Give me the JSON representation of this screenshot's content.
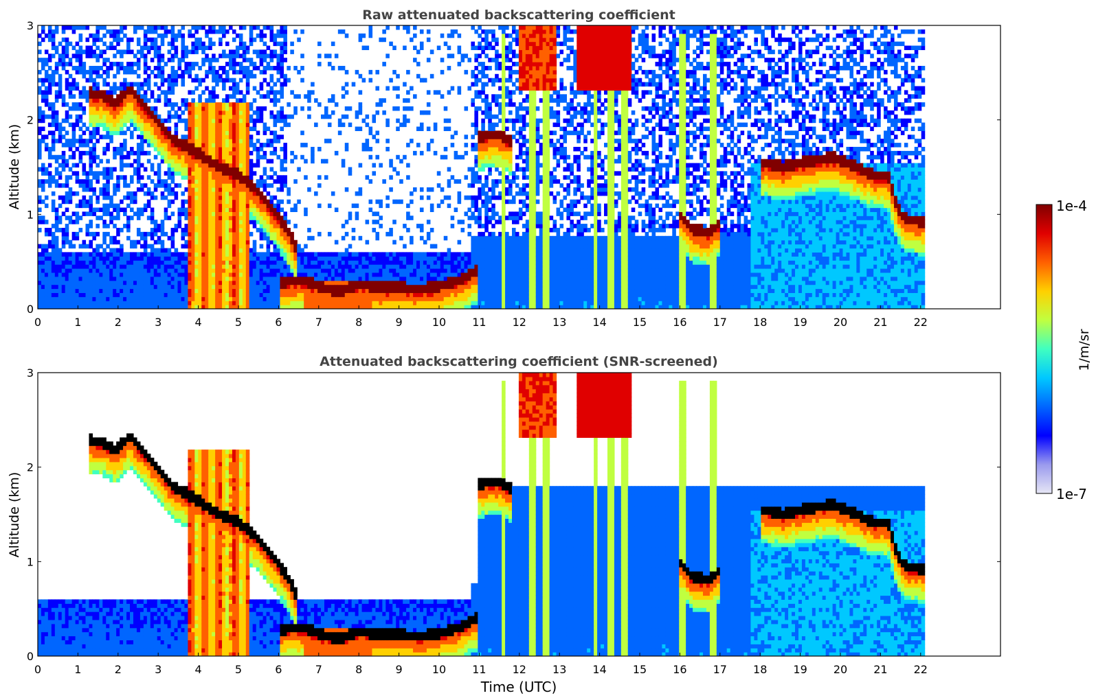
{
  "chart_data": [
    {
      "type": "heatmap",
      "title": "Raw attenuated backscattering coefficient",
      "xlabel": "",
      "ylabel": "Altitude (km)",
      "xlim": [
        0,
        24
      ],
      "ylim": [
        0,
        3
      ],
      "x_ticks": [
        "0",
        "1",
        "2",
        "3",
        "4",
        "5",
        "6",
        "7",
        "8",
        "9",
        "10",
        "11",
        "12",
        "13",
        "14",
        "15",
        "16",
        "17",
        "18",
        "19",
        "20",
        "21",
        "22"
      ],
      "y_ticks": [
        "0",
        "1",
        "2",
        "3"
      ],
      "data_time_range": [
        0,
        22.1
      ],
      "snr_screened": false,
      "layers": [
        {
          "kind": "cloud_base",
          "points": [
            [
              1.25,
              2.28
            ],
            [
              1.6,
              2.26
            ],
            [
              1.9,
              2.18
            ],
            [
              2.1,
              2.24
            ],
            [
              2.3,
              2.33
            ],
            [
              2.5,
              2.22
            ],
            [
              2.8,
              2.08
            ],
            [
              3.1,
              1.92
            ],
            [
              3.4,
              1.78
            ],
            [
              3.7,
              1.72
            ],
            [
              4.1,
              1.62
            ],
            [
              4.5,
              1.5
            ],
            [
              5.0,
              1.42
            ],
            [
              5.4,
              1.28
            ],
            [
              5.8,
              1.08
            ],
            [
              6.2,
              0.86
            ],
            [
              6.5,
              0.58
            ]
          ]
        },
        {
          "kind": "boundary_layer_top",
          "points": [
            [
              6.0,
              0.28
            ],
            [
              6.6,
              0.3
            ],
            [
              7.0,
              0.24
            ],
            [
              7.5,
              0.18
            ],
            [
              8.0,
              0.26
            ],
            [
              8.5,
              0.22
            ],
            [
              9.0,
              0.23
            ],
            [
              9.5,
              0.2
            ],
            [
              10.0,
              0.24
            ],
            [
              10.5,
              0.3
            ],
            [
              11.0,
              0.42
            ]
          ]
        },
        {
          "kind": "cloud_base",
          "points": [
            [
              11.0,
              1.82
            ],
            [
              11.4,
              1.85
            ],
            [
              11.8,
              1.78
            ]
          ]
        },
        {
          "kind": "cloud_base",
          "points": [
            [
              16.0,
              1.0
            ],
            [
              16.3,
              0.85
            ],
            [
              16.7,
              0.8
            ],
            [
              17.0,
              0.9
            ]
          ]
        },
        {
          "kind": "cloud_base",
          "points": [
            [
              18.0,
              1.55
            ],
            [
              18.6,
              1.5
            ],
            [
              19.2,
              1.56
            ],
            [
              19.8,
              1.6
            ],
            [
              20.3,
              1.52
            ],
            [
              20.8,
              1.42
            ],
            [
              21.2,
              1.4
            ],
            [
              21.4,
              1.1
            ],
            [
              21.6,
              0.95
            ],
            [
              22.1,
              0.92
            ]
          ]
        }
      ]
    },
    {
      "type": "heatmap",
      "title": "Attenuated backscattering coefficient (SNR-screened)",
      "xlabel": "Time (UTC)",
      "ylabel": "Altitude (km)",
      "xlim": [
        0,
        24
      ],
      "ylim": [
        0,
        3
      ],
      "x_ticks": [
        "0",
        "1",
        "2",
        "3",
        "4",
        "5",
        "6",
        "7",
        "8",
        "9",
        "10",
        "11",
        "12",
        "13",
        "14",
        "15",
        "16",
        "17",
        "18",
        "19",
        "20",
        "21",
        "22"
      ],
      "y_ticks": [
        "0",
        "1",
        "2",
        "3"
      ],
      "data_time_range": [
        0,
        22.1
      ],
      "snr_screened": true
    }
  ],
  "colorbar": {
    "label": "1/m/sr",
    "max_label": "1e-4",
    "min_label": "1e-7",
    "min": 1e-07,
    "max": 0.0001,
    "scale": "log",
    "colormap": "jet",
    "colors": [
      "#e6e6f5",
      "#9a9aee",
      "#0000ff",
      "#0066ff",
      "#00c8ff",
      "#40ffc0",
      "#c0ff40",
      "#ffd000",
      "#ff6000",
      "#e00000",
      "#800000"
    ]
  },
  "colors": {
    "background": "#ffffff",
    "axes": "#000000",
    "title_text": "#444444"
  }
}
